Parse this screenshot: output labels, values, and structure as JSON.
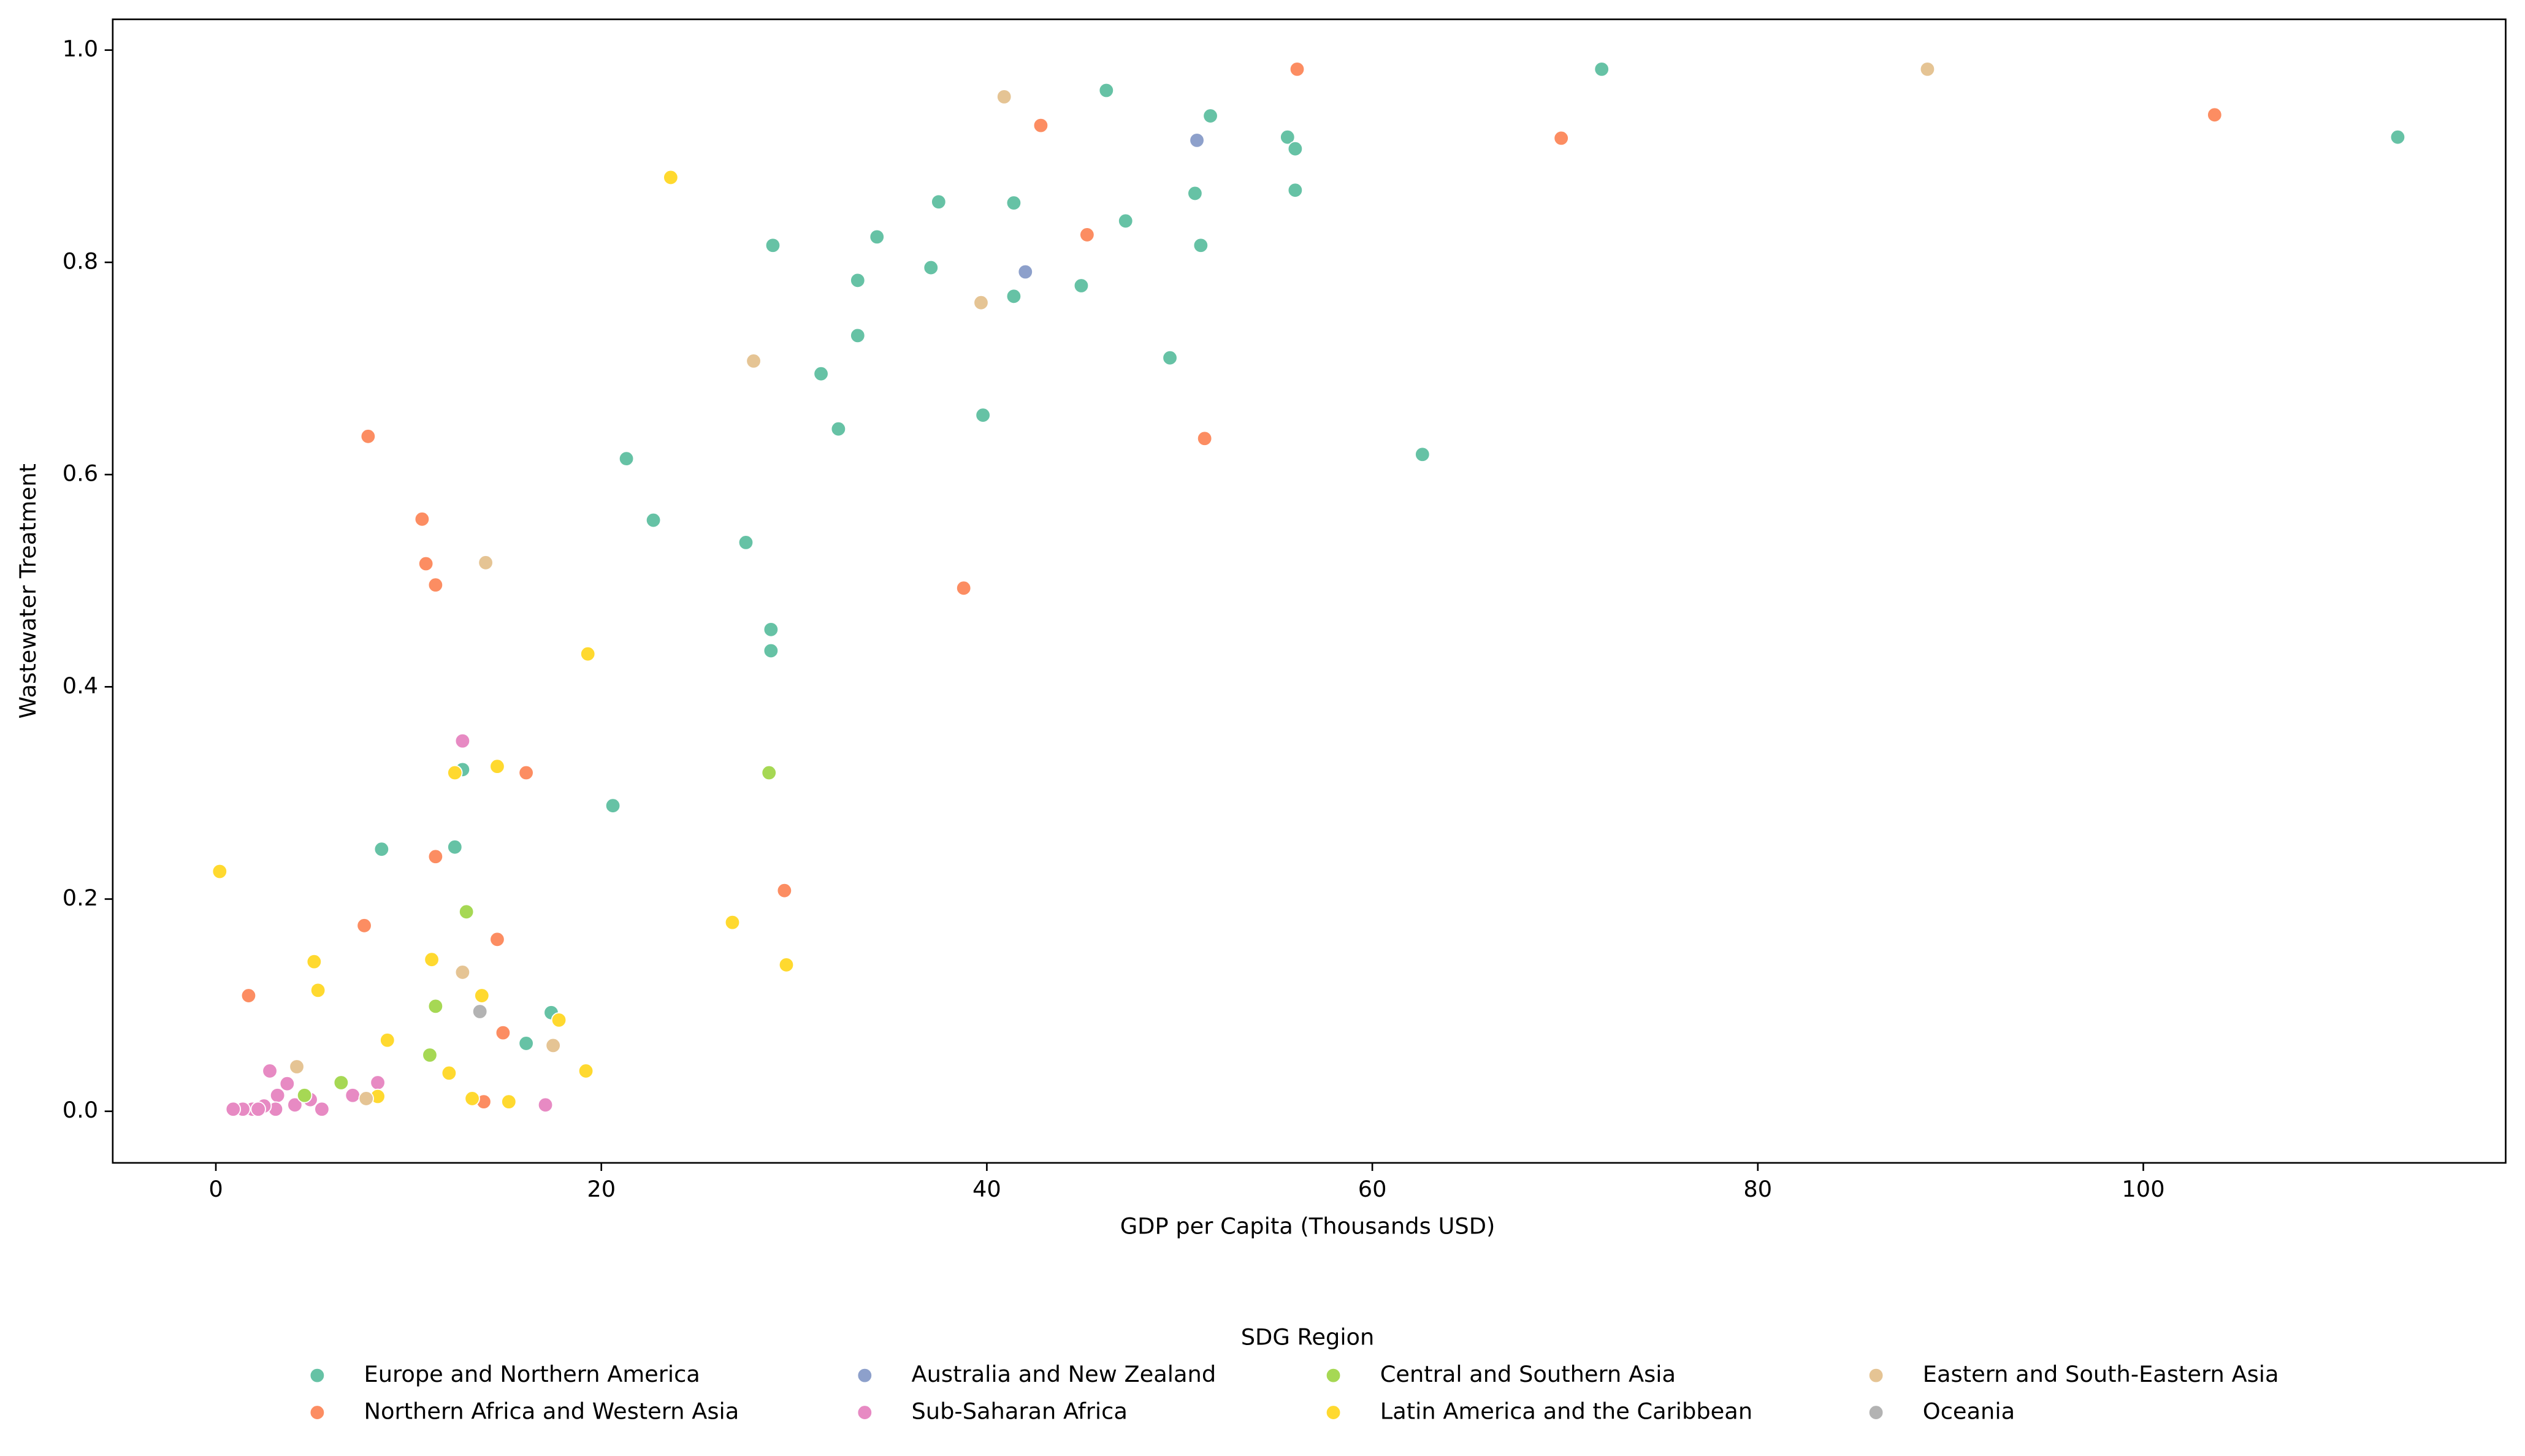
{
  "chart_data": {
    "type": "scatter",
    "x_label": "GDP per Capita (Thousands USD)",
    "y_label": "Wastewater Treatment",
    "legend_title": "SDG Region",
    "legend_position": "lower center",
    "xlim": [
      -5.35,
      118.8
    ],
    "ylim": [
      -0.0486,
      1.029
    ],
    "xticks": [
      0,
      20,
      40,
      60,
      80,
      100
    ],
    "yticks": [
      {
        "value": 0,
        "label": "0.0"
      },
      {
        "value": 0.2,
        "label": "0.2"
      },
      {
        "value": 0.4,
        "label": "0.4"
      },
      {
        "value": 0.6,
        "label": "0.6"
      },
      {
        "value": 0.8,
        "label": "0.8"
      },
      {
        "value": 1.0,
        "label": "1.0"
      }
    ],
    "grid": false,
    "series": [
      {
        "name": "Europe and Northern America",
        "color": "#66c2a5",
        "x": [
          46.2,
          71.9,
          113.2,
          51.6,
          55.6,
          56.0,
          56.0,
          50.8,
          37.5,
          41.4,
          47.2,
          34.3,
          28.9,
          51.1,
          37.1,
          33.3,
          44.9,
          41.4,
          33.3,
          49.5,
          31.4,
          39.8,
          32.3,
          62.6,
          21.3,
          22.7,
          27.5,
          28.8,
          28.8,
          12.8,
          20.6,
          8.6,
          12.4,
          17.4,
          16.1
        ],
        "y": [
          0.962,
          0.982,
          0.918,
          0.938,
          0.918,
          0.907,
          0.868,
          0.865,
          0.857,
          0.856,
          0.839,
          0.824,
          0.816,
          0.816,
          0.795,
          0.783,
          0.778,
          0.768,
          0.731,
          0.71,
          0.695,
          0.656,
          0.643,
          0.619,
          0.615,
          0.557,
          0.536,
          0.454,
          0.434,
          0.322,
          0.288,
          0.247,
          0.249,
          0.093,
          0.064
        ]
      },
      {
        "name": "Northern Africa and Western Asia",
        "color": "#fc8d62",
        "x": [
          56.1,
          103.7,
          42.8,
          69.8,
          45.2,
          51.3,
          7.9,
          10.7,
          10.9,
          11.4,
          38.8,
          16.1,
          11.4,
          29.5,
          7.7,
          14.6,
          1.7,
          14.9,
          13.9
        ],
        "y": [
          0.982,
          0.939,
          0.929,
          0.917,
          0.826,
          0.634,
          0.636,
          0.558,
          0.516,
          0.496,
          0.493,
          0.319,
          0.24,
          0.208,
          0.175,
          0.162,
          0.109,
          0.074,
          0.009
        ]
      },
      {
        "name": "Australia and New Zealand",
        "color": "#8da0cb",
        "x": [
          50.9,
          42.0
        ],
        "y": [
          0.915,
          0.791
        ]
      },
      {
        "name": "Sub-Saharan Africa",
        "color": "#e78ac3",
        "x": [
          12.8,
          2.8,
          3.7,
          3.2,
          8.4,
          7.1,
          4.9,
          4.1,
          5.5,
          3.1,
          2.5,
          1.9,
          1.4,
          0.9,
          17.1,
          2.2
        ],
        "y": [
          0.349,
          0.038,
          0.026,
          0.015,
          0.027,
          0.015,
          0.011,
          0.006,
          0.002,
          0.002,
          0.005,
          0.002,
          0.002,
          0.002,
          0.006,
          0.002
        ]
      },
      {
        "name": "Central and Southern Asia",
        "color": "#a6d854",
        "x": [
          28.7,
          13.0,
          11.4,
          11.1,
          6.5,
          4.6
        ],
        "y": [
          0.319,
          0.188,
          0.099,
          0.053,
          0.027,
          0.015
        ]
      },
      {
        "name": "Latin America and the Caribbean",
        "color": "#ffd92f",
        "x": [
          23.6,
          0.2,
          19.3,
          14.6,
          12.4,
          26.8,
          5.1,
          11.2,
          29.6,
          5.3,
          13.8,
          17.8,
          8.9,
          12.1,
          19.2,
          8.4,
          13.3,
          15.2
        ],
        "y": [
          0.88,
          0.226,
          0.431,
          0.325,
          0.319,
          0.178,
          0.141,
          0.143,
          0.138,
          0.114,
          0.109,
          0.086,
          0.067,
          0.036,
          0.038,
          0.014,
          0.012,
          0.009
        ]
      },
      {
        "name": "Eastern and South-Eastern Asia",
        "color": "#e5c494",
        "x": [
          88.8,
          40.9,
          39.7,
          27.9,
          14.0,
          12.8,
          17.5,
          4.2,
          7.8
        ],
        "y": [
          0.982,
          0.956,
          0.762,
          0.707,
          0.517,
          0.131,
          0.062,
          0.042,
          0.012
        ]
      },
      {
        "name": "Oceania",
        "color": "#b3b3b3",
        "x": [
          13.7
        ],
        "y": [
          0.094
        ]
      }
    ]
  }
}
